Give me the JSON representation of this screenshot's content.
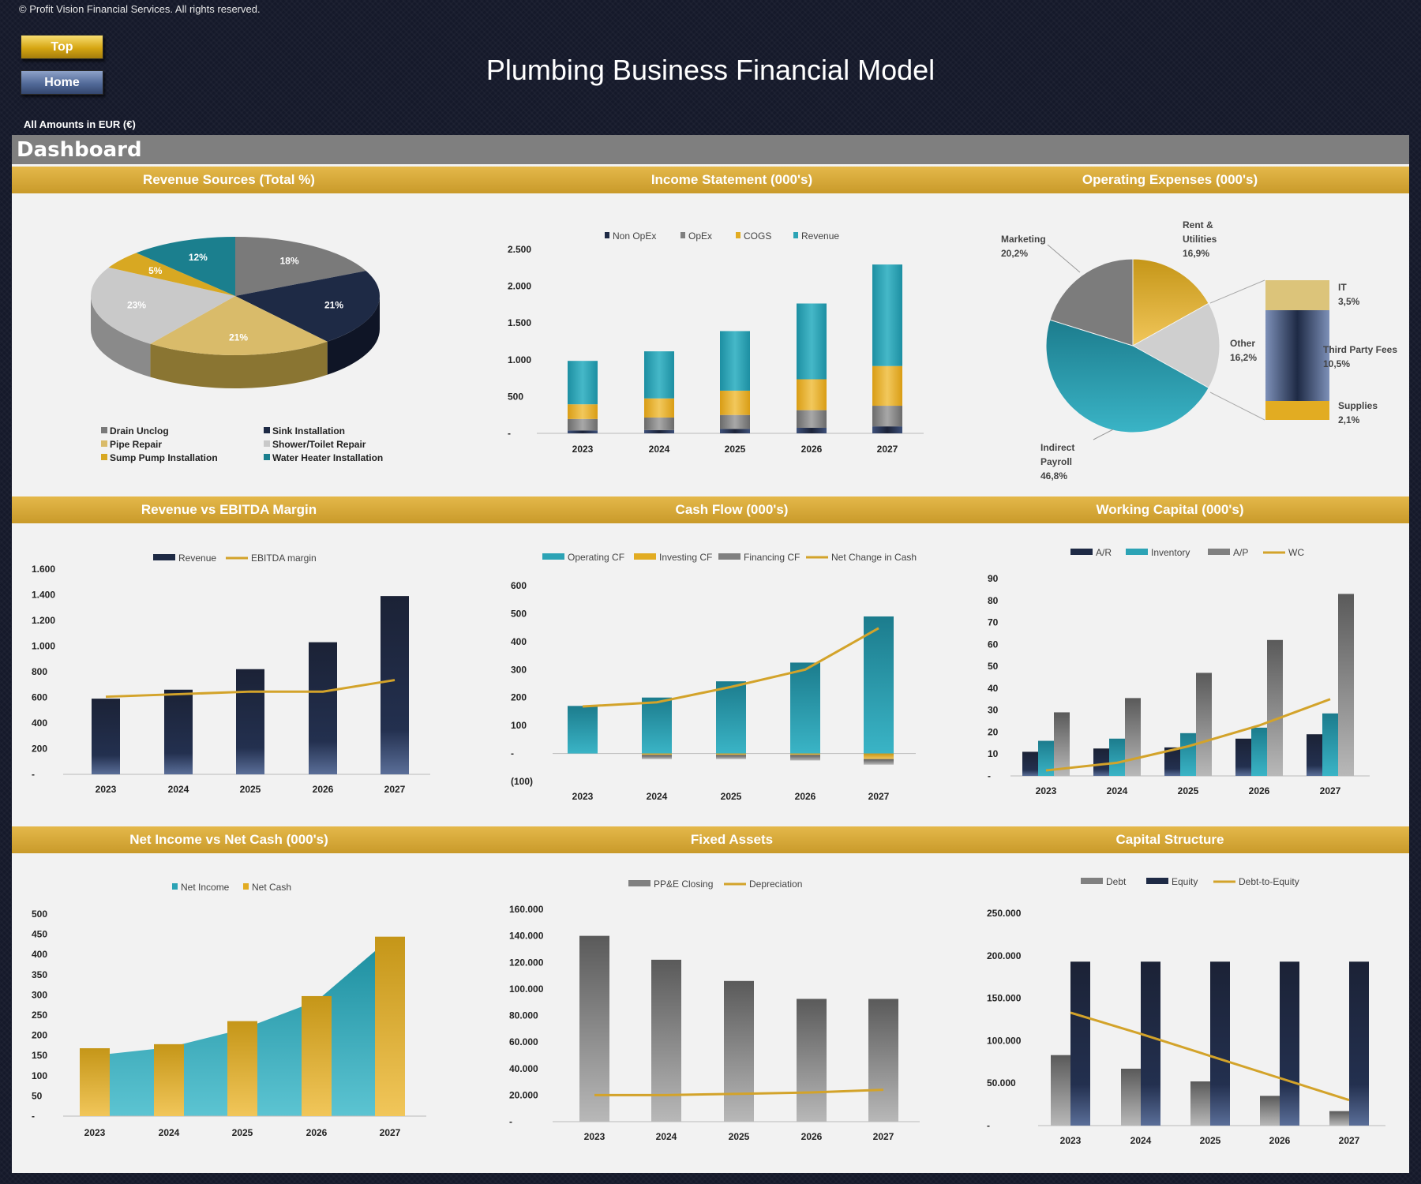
{
  "header": {
    "copyright": "© Profit Vision Financial Services. All rights reserved.",
    "title": "Plumbing Business Financial Model",
    "currency": "All Amounts in  EUR (€)",
    "top_button": "Top",
    "home_button": "Home"
  },
  "dashboard": {
    "title": "Dashboard"
  },
  "sections": {
    "revenue_sources": "Revenue Sources (Total %)",
    "income_statement": "Income Statement (000's)",
    "operating_expenses": "Operating Expenses (000's)",
    "revenue_ebitda": "Revenue vs EBITDA Margin",
    "cash_flow": "Cash Flow (000's)",
    "working_capital": "Working Capital (000's)",
    "net_income_cash": "Net Income vs Net Cash (000's)",
    "fixed_assets": "Fixed Assets",
    "capital_structure": "Capital Structure"
  },
  "colors": {
    "navy": "#1e2a45",
    "teal": "#2ca3b5",
    "gold": "#e2ac22",
    "gray": "#808080",
    "lightgray": "#c8c8c8",
    "band": "#d4a93a",
    "line": "#d3a32a"
  },
  "chart_data": [
    {
      "id": "revenue_sources",
      "type": "pie",
      "slices": [
        {
          "name": "Drain Unclog",
          "value": 18,
          "label": "18%",
          "color": "#7a7a7a"
        },
        {
          "name": "Sink Installation",
          "value": 21,
          "label": "21%",
          "color": "#1e2a45"
        },
        {
          "name": "Pipe Repair",
          "value": 21,
          "label": "21%",
          "color": "#d9bb6a"
        },
        {
          "name": "Shower/Toilet Repair",
          "value": 23,
          "label": "23%",
          "color": "#c9c9c9"
        },
        {
          "name": "Sump Pump Installation",
          "value": 5,
          "label": "5%",
          "color": "#d8a822"
        },
        {
          "name": "Water Heater Installation",
          "value": 12,
          "label": "12%",
          "color": "#1b7f8e"
        }
      ],
      "legend": [
        "Drain Unclog",
        "Sink Installation",
        "Pipe Repair",
        "Shower/Toilet Repair",
        "Sump Pump Installation",
        "Water Heater Installation"
      ]
    },
    {
      "id": "income_statement",
      "type": "bar",
      "categories": [
        "2023",
        "2024",
        "2025",
        "2026",
        "2027"
      ],
      "series": [
        {
          "name": "Non OpEx",
          "values": [
            40,
            45,
            60,
            75,
            95
          ]
        },
        {
          "name": "OpEx",
          "values": [
            155,
            170,
            190,
            240,
            280
          ]
        },
        {
          "name": "COGS",
          "values": [
            200,
            260,
            330,
            420,
            540
          ]
        },
        {
          "name": "Revenue",
          "values": [
            590,
            640,
            810,
            1030,
            1380
          ]
        }
      ],
      "yticks": [
        "-",
        "500",
        "1.000",
        "1.500",
        "2.000",
        "2.500"
      ],
      "ylim": [
        0,
        2500
      ]
    },
    {
      "id": "operating_expenses",
      "type": "pie",
      "slices": [
        {
          "name": "Rent & Utilities",
          "value": 16.9,
          "label": "16,9%"
        },
        {
          "name": "Other",
          "value": 16.2,
          "label": "16,2%"
        },
        {
          "name": "Indirect Payroll",
          "value": 46.8,
          "label": "46,8%"
        },
        {
          "name": "Marketing",
          "value": 20.2,
          "label": "20,2%"
        }
      ],
      "other_breakdown": [
        {
          "name": "IT",
          "label": "3,5%"
        },
        {
          "name": "Third Party Fees",
          "label": "10,5%"
        },
        {
          "name": "Supplies",
          "label": "2,1%"
        }
      ]
    },
    {
      "id": "revenue_ebitda",
      "type": "bar",
      "categories": [
        "2023",
        "2024",
        "2025",
        "2026",
        "2027"
      ],
      "series": [
        {
          "name": "Revenue",
          "values": [
            590,
            660,
            820,
            1030,
            1390
          ]
        },
        {
          "name": "EBITDA margin",
          "values": [
            605,
            625,
            645,
            645,
            735
          ]
        }
      ],
      "yticks": [
        "-",
        "200",
        "400",
        "600",
        "800",
        "1.000",
        "1.200",
        "1.400",
        "1.600"
      ],
      "ylim": [
        0,
        1600
      ]
    },
    {
      "id": "cash_flow",
      "type": "bar",
      "categories": [
        "2023",
        "2024",
        "2025",
        "2026",
        "2027"
      ],
      "series": [
        {
          "name": "Operating CF",
          "values": [
            170,
            200,
            258,
            325,
            490
          ]
        },
        {
          "name": "Investing CF",
          "values": [
            0,
            -5,
            -5,
            -5,
            -20
          ]
        },
        {
          "name": "Financing CF",
          "values": [
            0,
            -15,
            -15,
            -20,
            -20
          ]
        },
        {
          "name": "Net Change in Cash",
          "values": [
            168,
            183,
            238,
            300,
            448
          ]
        }
      ],
      "yticks": [
        "(100)",
        "-",
        "100",
        "200",
        "300",
        "400",
        "500",
        "600"
      ],
      "ylim": [
        -100,
        600
      ]
    },
    {
      "id": "working_capital",
      "type": "bar",
      "categories": [
        "2023",
        "2024",
        "2025",
        "2026",
        "2027"
      ],
      "series": [
        {
          "name": "A/R",
          "values": [
            11,
            12.5,
            13,
            17,
            19
          ]
        },
        {
          "name": "Inventory",
          "values": [
            16,
            17,
            19.5,
            22,
            28.5
          ]
        },
        {
          "name": "A/P",
          "values": [
            29,
            35.5,
            47,
            62,
            83
          ]
        },
        {
          "name": "WC",
          "values": [
            2.5,
            6,
            13.5,
            23,
            35
          ]
        }
      ],
      "yticks": [
        "-",
        "10",
        "20",
        "30",
        "40",
        "50",
        "60",
        "70",
        "80",
        "90"
      ],
      "ylim": [
        0,
        90
      ]
    },
    {
      "id": "net_income_cash",
      "type": "area",
      "categories": [
        "2023",
        "2024",
        "2025",
        "2026",
        "2027"
      ],
      "series": [
        {
          "name": "Net Income",
          "values": [
            150,
            170,
            215,
            285,
            440
          ]
        },
        {
          "name": "Net Cash",
          "values": [
            168,
            178,
            235,
            297,
            444
          ]
        }
      ],
      "yticks": [
        "-",
        "50",
        "100",
        "150",
        "200",
        "250",
        "300",
        "350",
        "400",
        "450",
        "500"
      ],
      "ylim": [
        0,
        500
      ]
    },
    {
      "id": "fixed_assets",
      "type": "bar",
      "categories": [
        "2023",
        "2024",
        "2025",
        "2026",
        "2027"
      ],
      "series": [
        {
          "name": "PP&E Closing",
          "values": [
            140000,
            122000,
            106000,
            92500,
            92500
          ]
        },
        {
          "name": "Depreciation",
          "values": [
            20000,
            20000,
            21000,
            22000,
            24000
          ]
        }
      ],
      "yticks": [
        "-",
        "20.000",
        "40.000",
        "60.000",
        "80.000",
        "100.000",
        "120.000",
        "140.000",
        "160.000"
      ],
      "ylim": [
        0,
        160000
      ]
    },
    {
      "id": "capital_structure",
      "type": "bar",
      "categories": [
        "2023",
        "2024",
        "2025",
        "2026",
        "2027"
      ],
      "series": [
        {
          "name": "Debt",
          "values": [
            83000,
            67000,
            52000,
            35000,
            17000
          ]
        },
        {
          "name": "Equity",
          "values": [
            193000,
            193000,
            193000,
            193000,
            193000
          ]
        },
        {
          "name": "Debt-to-Equity",
          "values": [
            133000,
            108000,
            82000,
            56000,
            30000
          ]
        }
      ],
      "yticks": [
        "-",
        "50.000",
        "100.000",
        "150.000",
        "200.000",
        "250.000"
      ],
      "ylim": [
        0,
        250000
      ]
    }
  ]
}
